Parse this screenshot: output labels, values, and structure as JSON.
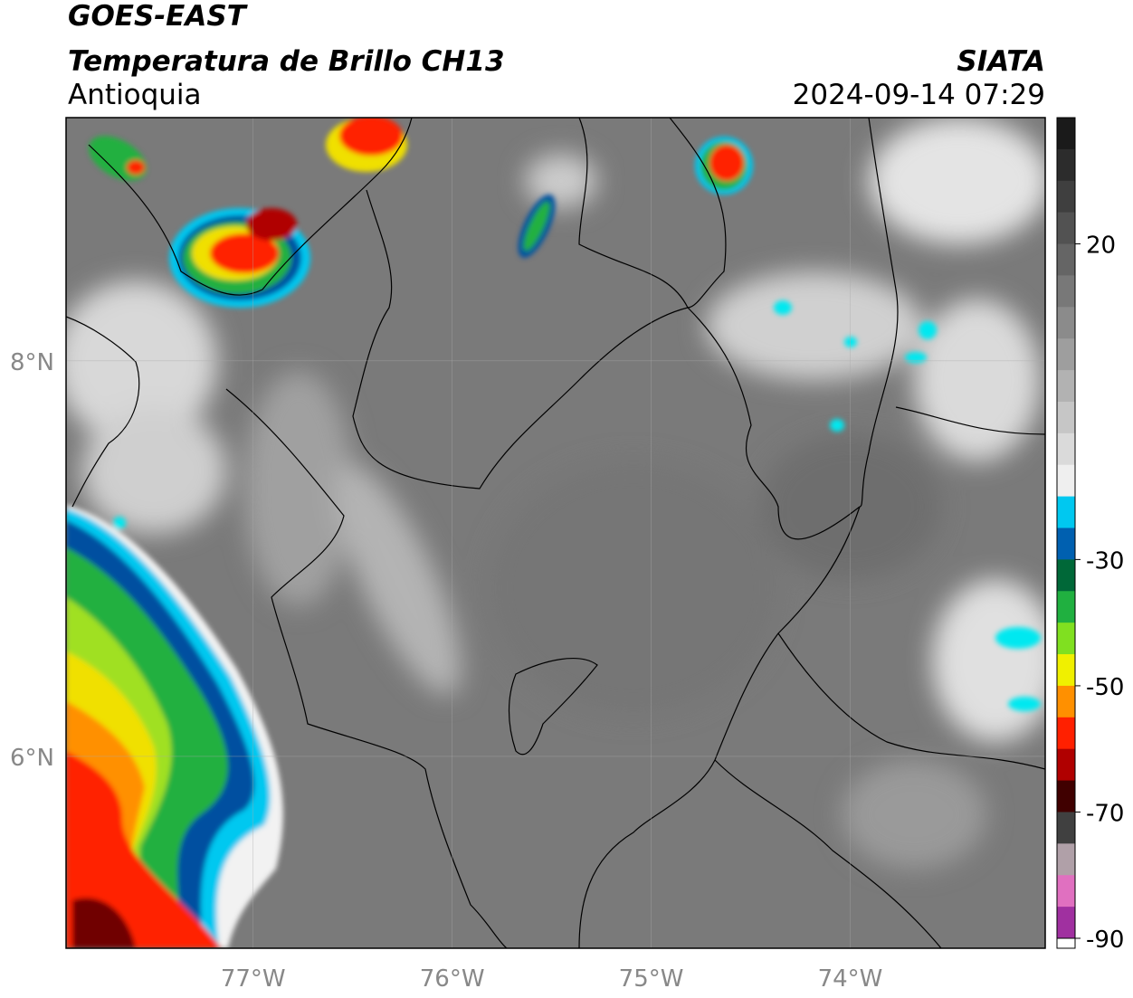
{
  "header": {
    "title": "GOES-EAST",
    "subtitle": "Temperatura de Brillo CH13",
    "region": "Antioquia",
    "source": "SIATA",
    "datetime": "2024-09-14 07:29"
  },
  "map": {
    "xlim": [
      -77.94,
      -73.02
    ],
    "ylim": [
      5.03,
      9.23
    ],
    "xticks": [
      {
        "value": -77,
        "label": "77°W"
      },
      {
        "value": -76,
        "label": "76°W"
      },
      {
        "value": -75,
        "label": "75°W"
      },
      {
        "value": -74,
        "label": "74°W"
      }
    ],
    "yticks": [
      {
        "value": 8,
        "label": "8°N"
      },
      {
        "value": 6,
        "label": "6°N"
      }
    ],
    "grid": true
  },
  "colorbar": {
    "lim": [
      -90,
      40
    ],
    "ticks": [
      20,
      -30,
      -50,
      -70,
      -90
    ],
    "colors": [
      "#1a1a1a",
      "#2c2c2c",
      "#3f3f3f",
      "#525252",
      "#656565",
      "#787878",
      "#8b8b8b",
      "#9e9e9e",
      "#b2b2b2",
      "#c6c6c6",
      "#dadada",
      "#efefef",
      "#00c8f0",
      "#0060b0",
      "#006838",
      "#20b040",
      "#80e020",
      "#f0f000",
      "#ff9000",
      "#ff2000",
      "#b00000",
      "#400000",
      "#404040",
      "#b0a0a8",
      "#e070c0",
      "#a030a0"
    ]
  }
}
